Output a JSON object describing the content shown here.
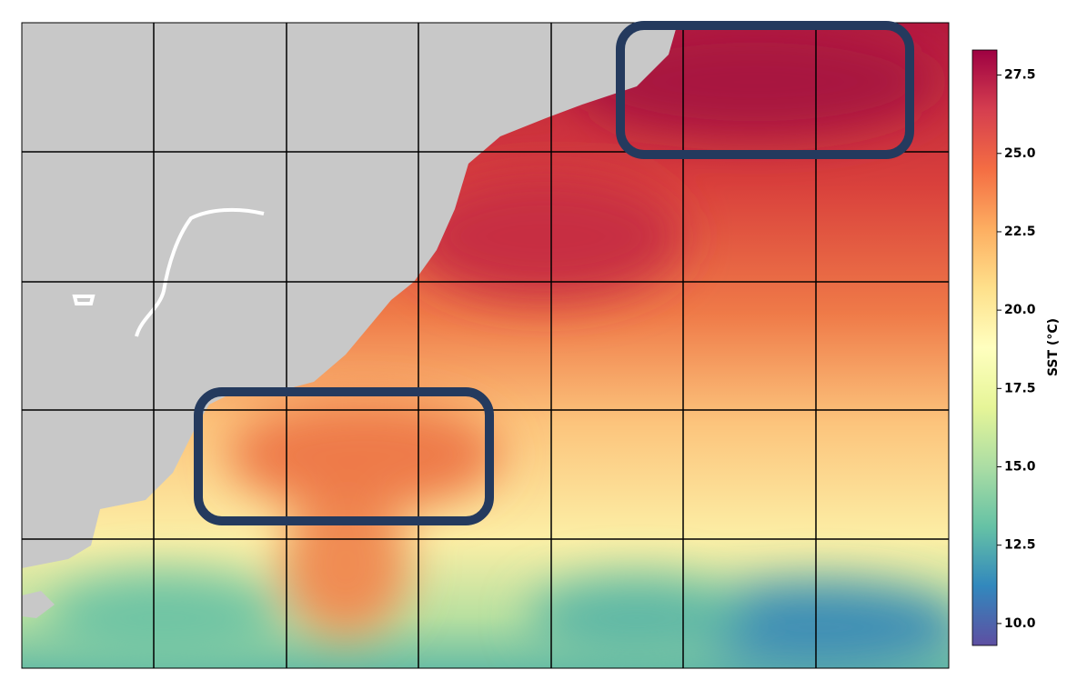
{
  "map": {
    "colorbar": {
      "label": "SST (°C)",
      "colormap": "Spectral_r",
      "lim": [
        9.3,
        28.3
      ],
      "ticks": [
        {
          "value": 10,
          "label": "10.0"
        },
        {
          "value": 12.5,
          "label": "12.5"
        },
        {
          "value": 15,
          "label": "15.0"
        },
        {
          "value": 17.5,
          "label": "17.5"
        },
        {
          "value": 20,
          "label": "20.0"
        },
        {
          "value": 22.5,
          "label": "22.5"
        },
        {
          "value": 25,
          "label": "25.0"
        },
        {
          "value": 27.5,
          "label": "27.5"
        }
      ]
    }
  }
}
